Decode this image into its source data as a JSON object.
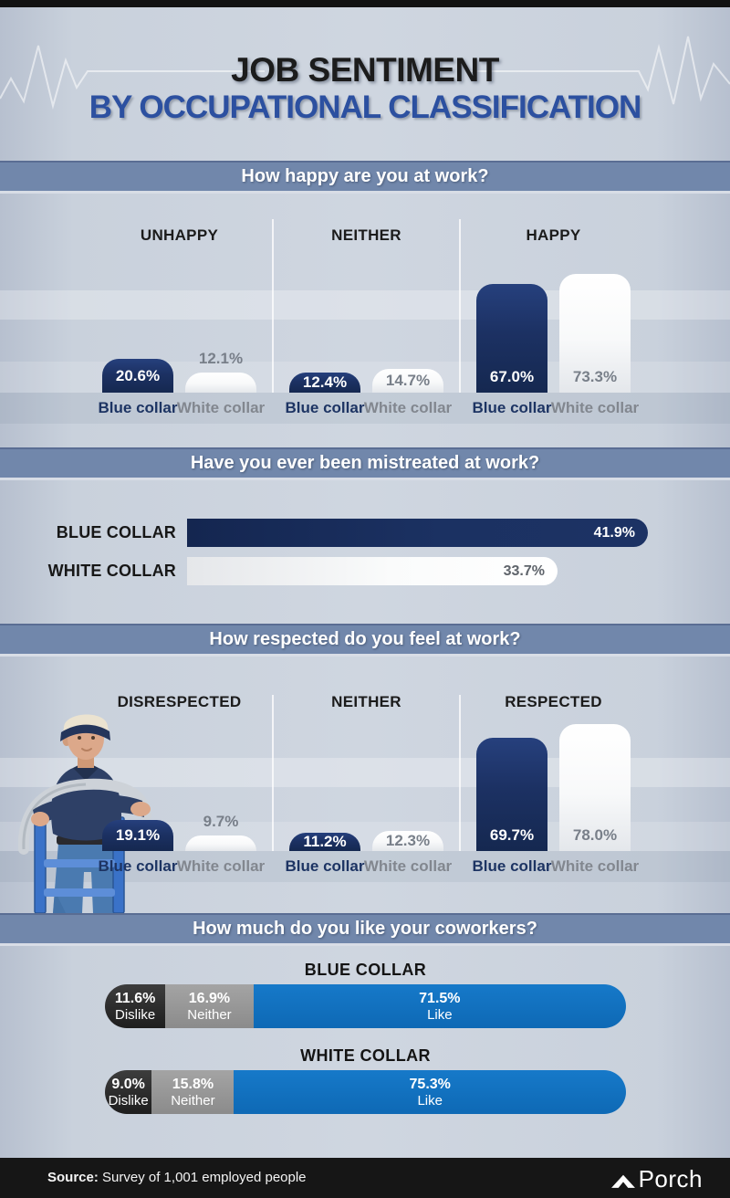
{
  "page": {
    "title_line1": "JOB SENTIMENT",
    "title_line2": "BY OCCUPATIONAL CLASSIFICATION"
  },
  "colors": {
    "navy_bar": "#1c3163",
    "white_bar": "#ffffff",
    "header_band": "#7187ab",
    "title_accent_blue": "#2c50a0",
    "like_blue": "#1173c4",
    "dislike_dark": "#2e2e2e",
    "neither_gray": "#999999",
    "background": "#c9d1dc",
    "footer_black": "#161616"
  },
  "chart_data": [
    {
      "type": "bar",
      "title": "How happy are you at work?",
      "unit": "%",
      "ylim": [
        0,
        100
      ],
      "series_names": [
        "Blue collar",
        "White collar"
      ],
      "groups": [
        {
          "label": "UNHAPPY",
          "bars": [
            {
              "series": "Blue collar",
              "value": 20.6
            },
            {
              "series": "White collar",
              "value": 12.1,
              "value_pos": "above"
            }
          ]
        },
        {
          "label": "NEITHER",
          "bars": [
            {
              "series": "Blue collar",
              "value": 12.4
            },
            {
              "series": "White collar",
              "value": 14.7
            }
          ]
        },
        {
          "label": "HAPPY",
          "bars": [
            {
              "series": "Blue collar",
              "value": 67.0
            },
            {
              "series": "White collar",
              "value": 73.3
            }
          ]
        }
      ]
    },
    {
      "type": "bar-horizontal",
      "title": "Have you ever been mistreated at work?",
      "unit": "%",
      "xlim": [
        0,
        50
      ],
      "bars": [
        {
          "label": "BLUE COLLAR",
          "value": 41.9,
          "style": "navy"
        },
        {
          "label": "WHITE COLLAR",
          "value": 33.7,
          "style": "white"
        }
      ]
    },
    {
      "type": "bar",
      "title": "How respected do you feel at work?",
      "unit": "%",
      "ylim": [
        0,
        100
      ],
      "series_names": [
        "Blue collar",
        "White collar"
      ],
      "groups": [
        {
          "label": "DISRESPECTED",
          "bars": [
            {
              "series": "Blue collar",
              "value": 19.1
            },
            {
              "series": "White collar",
              "value": 9.7,
              "value_pos": "above"
            }
          ]
        },
        {
          "label": "NEITHER",
          "bars": [
            {
              "series": "Blue collar",
              "value": 11.2
            },
            {
              "series": "White collar",
              "value": 12.3
            }
          ]
        },
        {
          "label": "RESPECTED",
          "bars": [
            {
              "series": "Blue collar",
              "value": 69.7
            },
            {
              "series": "White collar",
              "value": 78.0
            }
          ]
        }
      ]
    },
    {
      "type": "stacked-bar-horizontal",
      "title": "How much do you like your coworkers?",
      "unit": "%",
      "bars": [
        {
          "label": "BLUE COLLAR",
          "segments": [
            {
              "name": "Dislike",
              "value": 11.6
            },
            {
              "name": "Neither",
              "value": 16.9
            },
            {
              "name": "Like",
              "value": 71.5
            }
          ]
        },
        {
          "label": "WHITE COLLAR",
          "segments": [
            {
              "name": "Dislike",
              "value": 9.0
            },
            {
              "name": "Neither",
              "value": 15.8
            },
            {
              "name": "Like",
              "value": 75.3
            }
          ]
        }
      ]
    }
  ],
  "footer": {
    "source_label": "Source:",
    "source_text": "Survey of 1,001 employed people",
    "brand": "Porch"
  }
}
